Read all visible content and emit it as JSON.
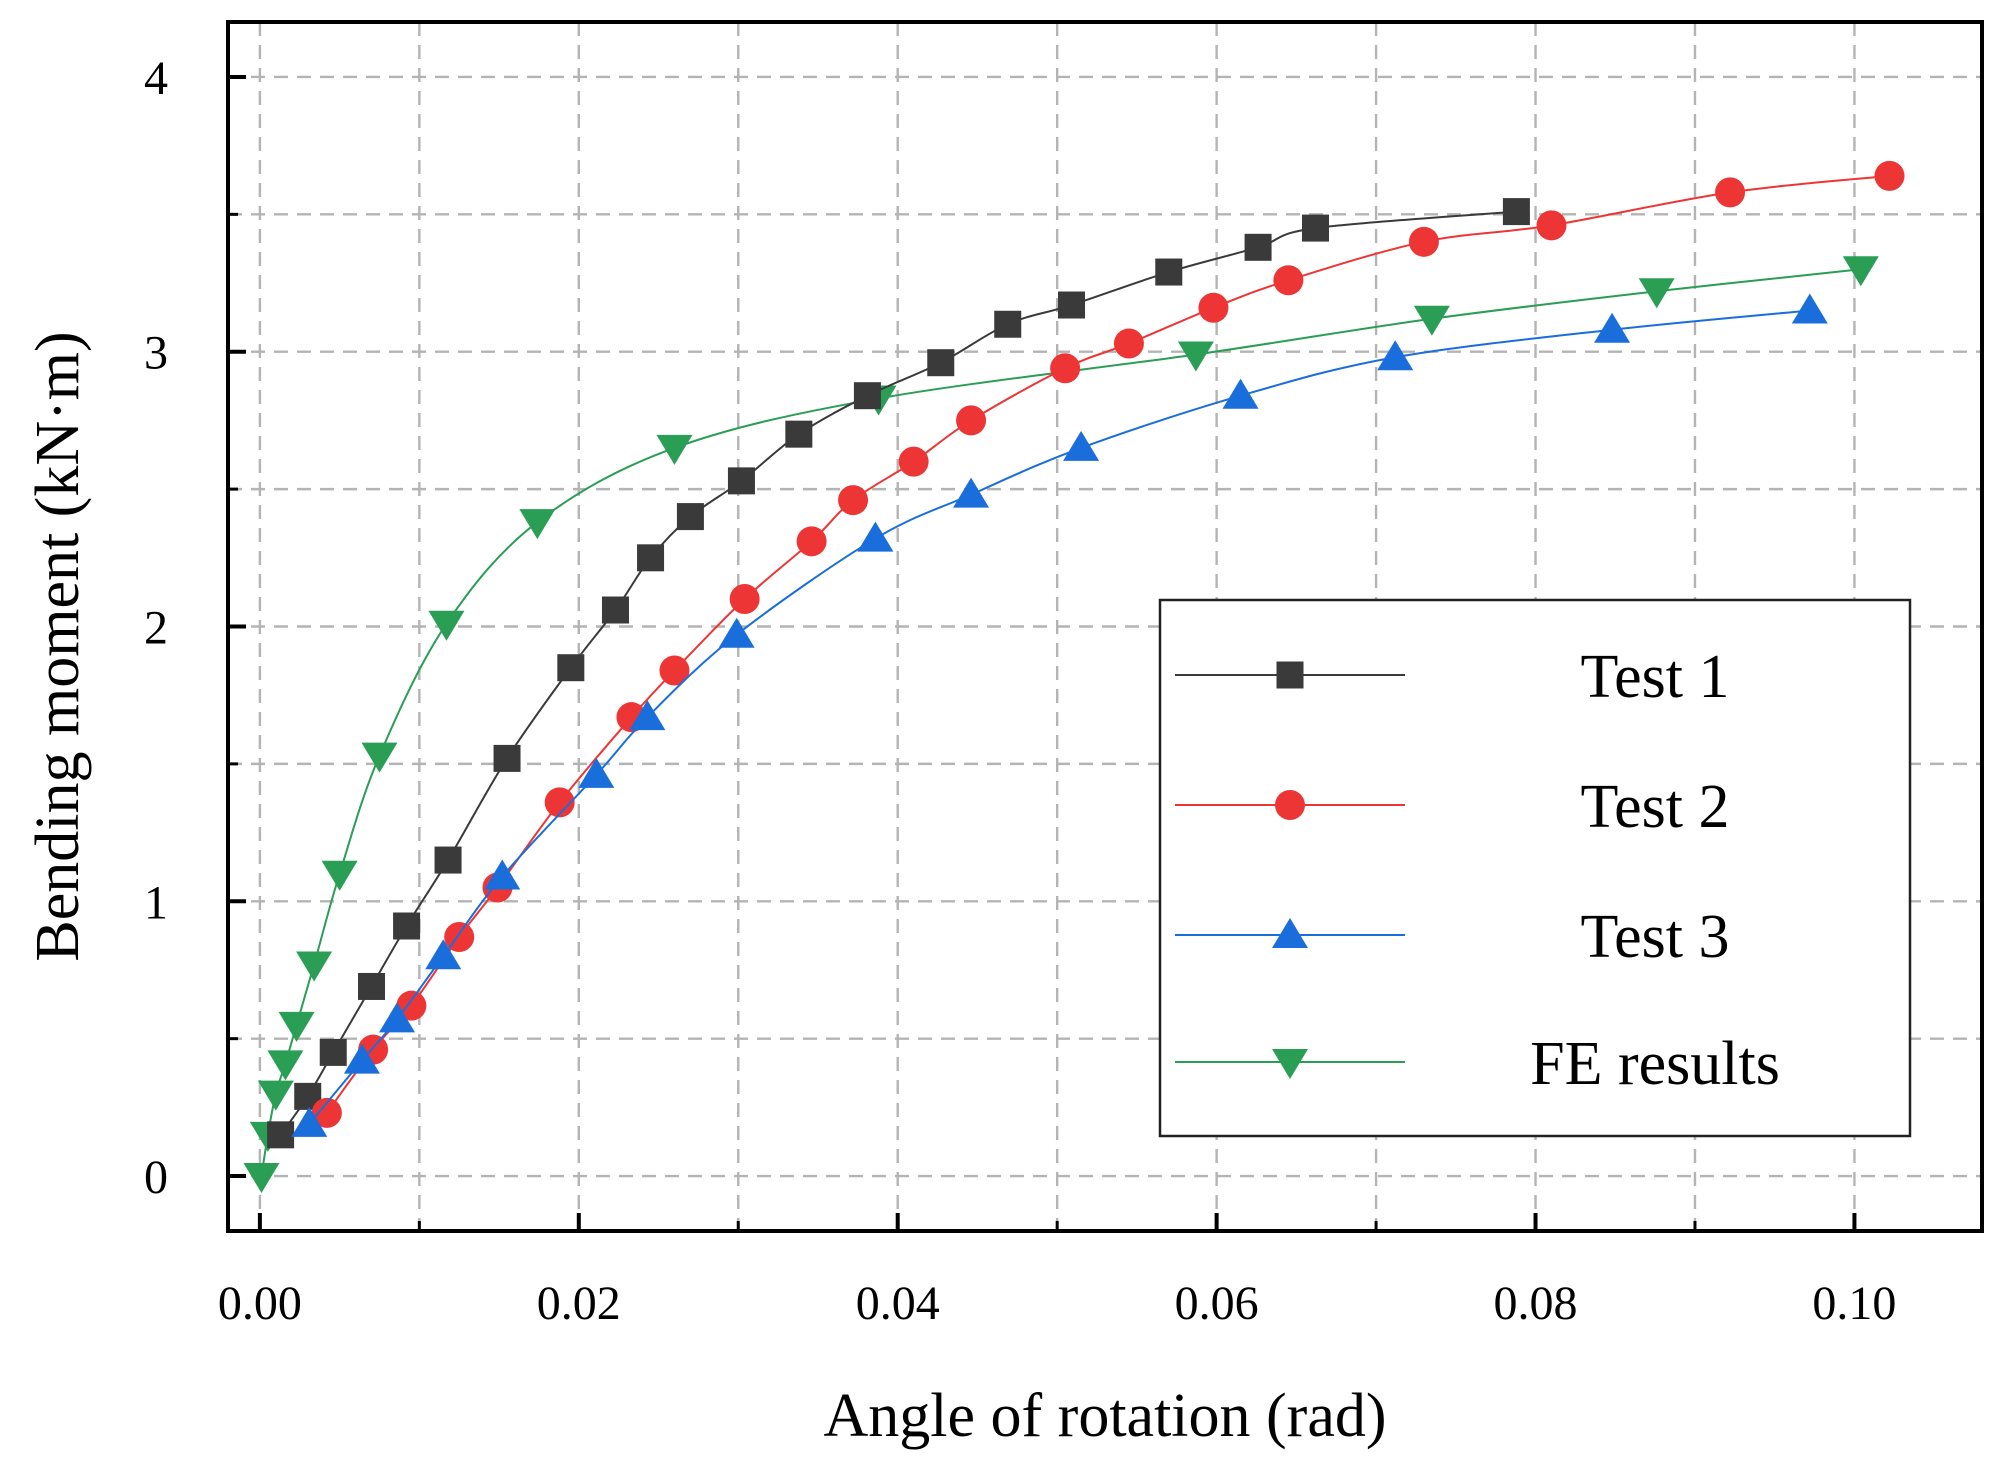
{
  "chart_data": {
    "type": "line",
    "xlabel": "Angle of rotation (rad)",
    "ylabel": "Bending moment (kN·m)",
    "xlim": [
      -0.002,
      0.108
    ],
    "ylim": [
      -0.2,
      4.2
    ],
    "x_ticks": [
      0.0,
      0.02,
      0.04,
      0.06,
      0.08,
      0.1
    ],
    "x_tick_labels": [
      "0.00",
      "0.02",
      "0.04",
      "0.06",
      "0.08",
      "0.10"
    ],
    "y_ticks": [
      0,
      1,
      2,
      3,
      4
    ],
    "y_tick_labels": [
      "0",
      "1",
      "2",
      "3",
      "4"
    ],
    "grid": true,
    "legend_position": "lower-right",
    "series": [
      {
        "name": "Test 1",
        "color": "#3a3a3a",
        "marker": "square",
        "points": [
          [
            0.0013,
            0.15
          ],
          [
            0.003,
            0.29
          ],
          [
            0.0046,
            0.45
          ],
          [
            0.007,
            0.69
          ],
          [
            0.0092,
            0.91
          ],
          [
            0.0118,
            1.15
          ],
          [
            0.0155,
            1.52
          ],
          [
            0.0195,
            1.85
          ],
          [
            0.0223,
            2.06
          ],
          [
            0.0245,
            2.25
          ],
          [
            0.027,
            2.4
          ],
          [
            0.0302,
            2.53
          ],
          [
            0.0338,
            2.7
          ],
          [
            0.0381,
            2.84
          ],
          [
            0.0427,
            2.96
          ],
          [
            0.0469,
            3.1
          ],
          [
            0.0509,
            3.17
          ],
          [
            0.057,
            3.29
          ],
          [
            0.0626,
            3.38
          ],
          [
            0.0662,
            3.45
          ],
          [
            0.0788,
            3.51
          ]
        ]
      },
      {
        "name": "Test 2",
        "color": "#ee3535",
        "marker": "circle",
        "points": [
          [
            0.0042,
            0.23
          ],
          [
            0.0071,
            0.46
          ],
          [
            0.0095,
            0.62
          ],
          [
            0.0125,
            0.87
          ],
          [
            0.0149,
            1.05
          ],
          [
            0.0188,
            1.36
          ],
          [
            0.0233,
            1.67
          ],
          [
            0.026,
            1.84
          ],
          [
            0.0304,
            2.1
          ],
          [
            0.0346,
            2.31
          ],
          [
            0.0372,
            2.46
          ],
          [
            0.041,
            2.6
          ],
          [
            0.0446,
            2.75
          ],
          [
            0.0505,
            2.94
          ],
          [
            0.0545,
            3.03
          ],
          [
            0.0598,
            3.16
          ],
          [
            0.0645,
            3.26
          ],
          [
            0.073,
            3.4
          ],
          [
            0.081,
            3.46
          ],
          [
            0.0922,
            3.58
          ],
          [
            0.1022,
            3.64
          ]
        ]
      },
      {
        "name": "Test 3",
        "color": "#1a6edc",
        "marker": "triangle-up",
        "points": [
          [
            0.0031,
            0.19
          ],
          [
            0.0064,
            0.42
          ],
          [
            0.0086,
            0.57
          ],
          [
            0.0115,
            0.8
          ],
          [
            0.0152,
            1.09
          ],
          [
            0.0211,
            1.46
          ],
          [
            0.0243,
            1.67
          ],
          [
            0.0299,
            1.97
          ],
          [
            0.0386,
            2.32
          ],
          [
            0.0446,
            2.48
          ],
          [
            0.0515,
            2.65
          ],
          [
            0.0615,
            2.84
          ],
          [
            0.0712,
            2.98
          ],
          [
            0.0848,
            3.08
          ],
          [
            0.0972,
            3.15
          ]
        ]
      },
      {
        "name": "FE results",
        "color": "#2a9e55",
        "marker": "triangle-down",
        "points": [
          [
            0.0001,
            0.0
          ],
          [
            0.0005,
            0.15
          ],
          [
            0.001,
            0.3
          ],
          [
            0.0016,
            0.41
          ],
          [
            0.0023,
            0.55
          ],
          [
            0.0034,
            0.77
          ],
          [
            0.005,
            1.1
          ],
          [
            0.0075,
            1.53
          ],
          [
            0.0117,
            2.01
          ],
          [
            0.0174,
            2.38
          ],
          [
            0.026,
            2.65
          ],
          [
            0.0388,
            2.83
          ],
          [
            0.0587,
            2.99
          ],
          [
            0.0735,
            3.12
          ],
          [
            0.0876,
            3.22
          ],
          [
            0.1004,
            3.3
          ]
        ]
      }
    ]
  }
}
